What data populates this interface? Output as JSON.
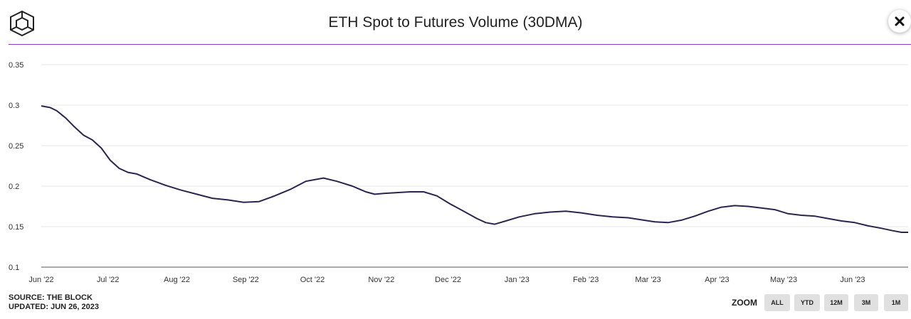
{
  "header": {
    "title": "ETH Spot to Futures Volume (30DMA)"
  },
  "icons": {
    "logo": "the-block-cube-logo",
    "close": "close-icon"
  },
  "footer": {
    "source": "SOURCE: THE BLOCK",
    "updated": "UPDATED: JUN 26, 2023"
  },
  "zoom": {
    "label": "ZOOM",
    "buttons": [
      "ALL",
      "YTD",
      "12M",
      "3M",
      "1M"
    ]
  },
  "colors": {
    "line": "#2a2550",
    "divider": "#8b3fc4",
    "grid": "#e6e6e6",
    "button": "#e0e0e0"
  },
  "chart_data": {
    "type": "line",
    "title": "ETH Spot to Futures Volume (30DMA)",
    "xlabel": "",
    "ylabel": "",
    "grid": true,
    "ylim": [
      0.1,
      0.35
    ],
    "xlim": [
      "2022-06-01",
      "2023-06-26"
    ],
    "y_ticks": [
      0.1,
      0.15,
      0.2,
      0.25,
      0.3,
      0.35
    ],
    "y_tick_labels": [
      "0.1",
      "0.15",
      "0.2",
      "0.25",
      "0.3",
      "0.35"
    ],
    "x_ticks": [
      "2022-06-01",
      "2022-07-01",
      "2022-08-01",
      "2022-09-01",
      "2022-10-01",
      "2022-11-01",
      "2022-12-01",
      "2023-01-01",
      "2023-02-01",
      "2023-03-01",
      "2023-04-01",
      "2023-05-01",
      "2023-06-01"
    ],
    "x_tick_labels": [
      "Jun '22",
      "Jul '22",
      "Aug '22",
      "Sep '22",
      "Oct '22",
      "Nov '22",
      "Dec '22",
      "Jan '23",
      "Feb '23",
      "Mar '23",
      "Apr '23",
      "May '23",
      "Jun '23"
    ],
    "series": [
      {
        "x": [
          "2022-06-01",
          "2022-06-05",
          "2022-06-08",
          "2022-06-12",
          "2022-06-16",
          "2022-06-20",
          "2022-06-24",
          "2022-06-28",
          "2022-07-02",
          "2022-07-06",
          "2022-07-10",
          "2022-07-14",
          "2022-07-20",
          "2022-07-27",
          "2022-08-03",
          "2022-08-10",
          "2022-08-17",
          "2022-08-24",
          "2022-08-31",
          "2022-09-07",
          "2022-09-14",
          "2022-09-21",
          "2022-09-28",
          "2022-10-02",
          "2022-10-06",
          "2022-10-12",
          "2022-10-19",
          "2022-10-25",
          "2022-10-29",
          "2022-11-02",
          "2022-11-08",
          "2022-11-14",
          "2022-11-20",
          "2022-11-26",
          "2022-12-02",
          "2022-12-08",
          "2022-12-14",
          "2022-12-18",
          "2022-12-22",
          "2022-12-27",
          "2023-01-02",
          "2023-01-09",
          "2023-01-16",
          "2023-01-23",
          "2023-01-30",
          "2023-02-06",
          "2023-02-13",
          "2023-02-20",
          "2023-02-27",
          "2023-03-04",
          "2023-03-10",
          "2023-03-16",
          "2023-03-22",
          "2023-03-28",
          "2023-04-03",
          "2023-04-09",
          "2023-04-15",
          "2023-04-21",
          "2023-04-27",
          "2023-05-03",
          "2023-05-09",
          "2023-05-15",
          "2023-05-21",
          "2023-05-27",
          "2023-06-02",
          "2023-06-08",
          "2023-06-14",
          "2023-06-19",
          "2023-06-23",
          "2023-06-26"
        ],
        "values": [
          0.299,
          0.297,
          0.293,
          0.284,
          0.273,
          0.263,
          0.257,
          0.247,
          0.232,
          0.222,
          0.217,
          0.215,
          0.208,
          0.201,
          0.195,
          0.19,
          0.185,
          0.183,
          0.18,
          0.181,
          0.188,
          0.196,
          0.206,
          0.208,
          0.21,
          0.206,
          0.2,
          0.193,
          0.19,
          0.191,
          0.192,
          0.193,
          0.193,
          0.188,
          0.178,
          0.169,
          0.16,
          0.155,
          0.153,
          0.157,
          0.162,
          0.166,
          0.168,
          0.169,
          0.167,
          0.164,
          0.162,
          0.161,
          0.158,
          0.156,
          0.155,
          0.158,
          0.163,
          0.169,
          0.174,
          0.176,
          0.175,
          0.173,
          0.171,
          0.166,
          0.164,
          0.163,
          0.16,
          0.157,
          0.155,
          0.151,
          0.148,
          0.145,
          0.143,
          0.143
        ]
      }
    ]
  }
}
